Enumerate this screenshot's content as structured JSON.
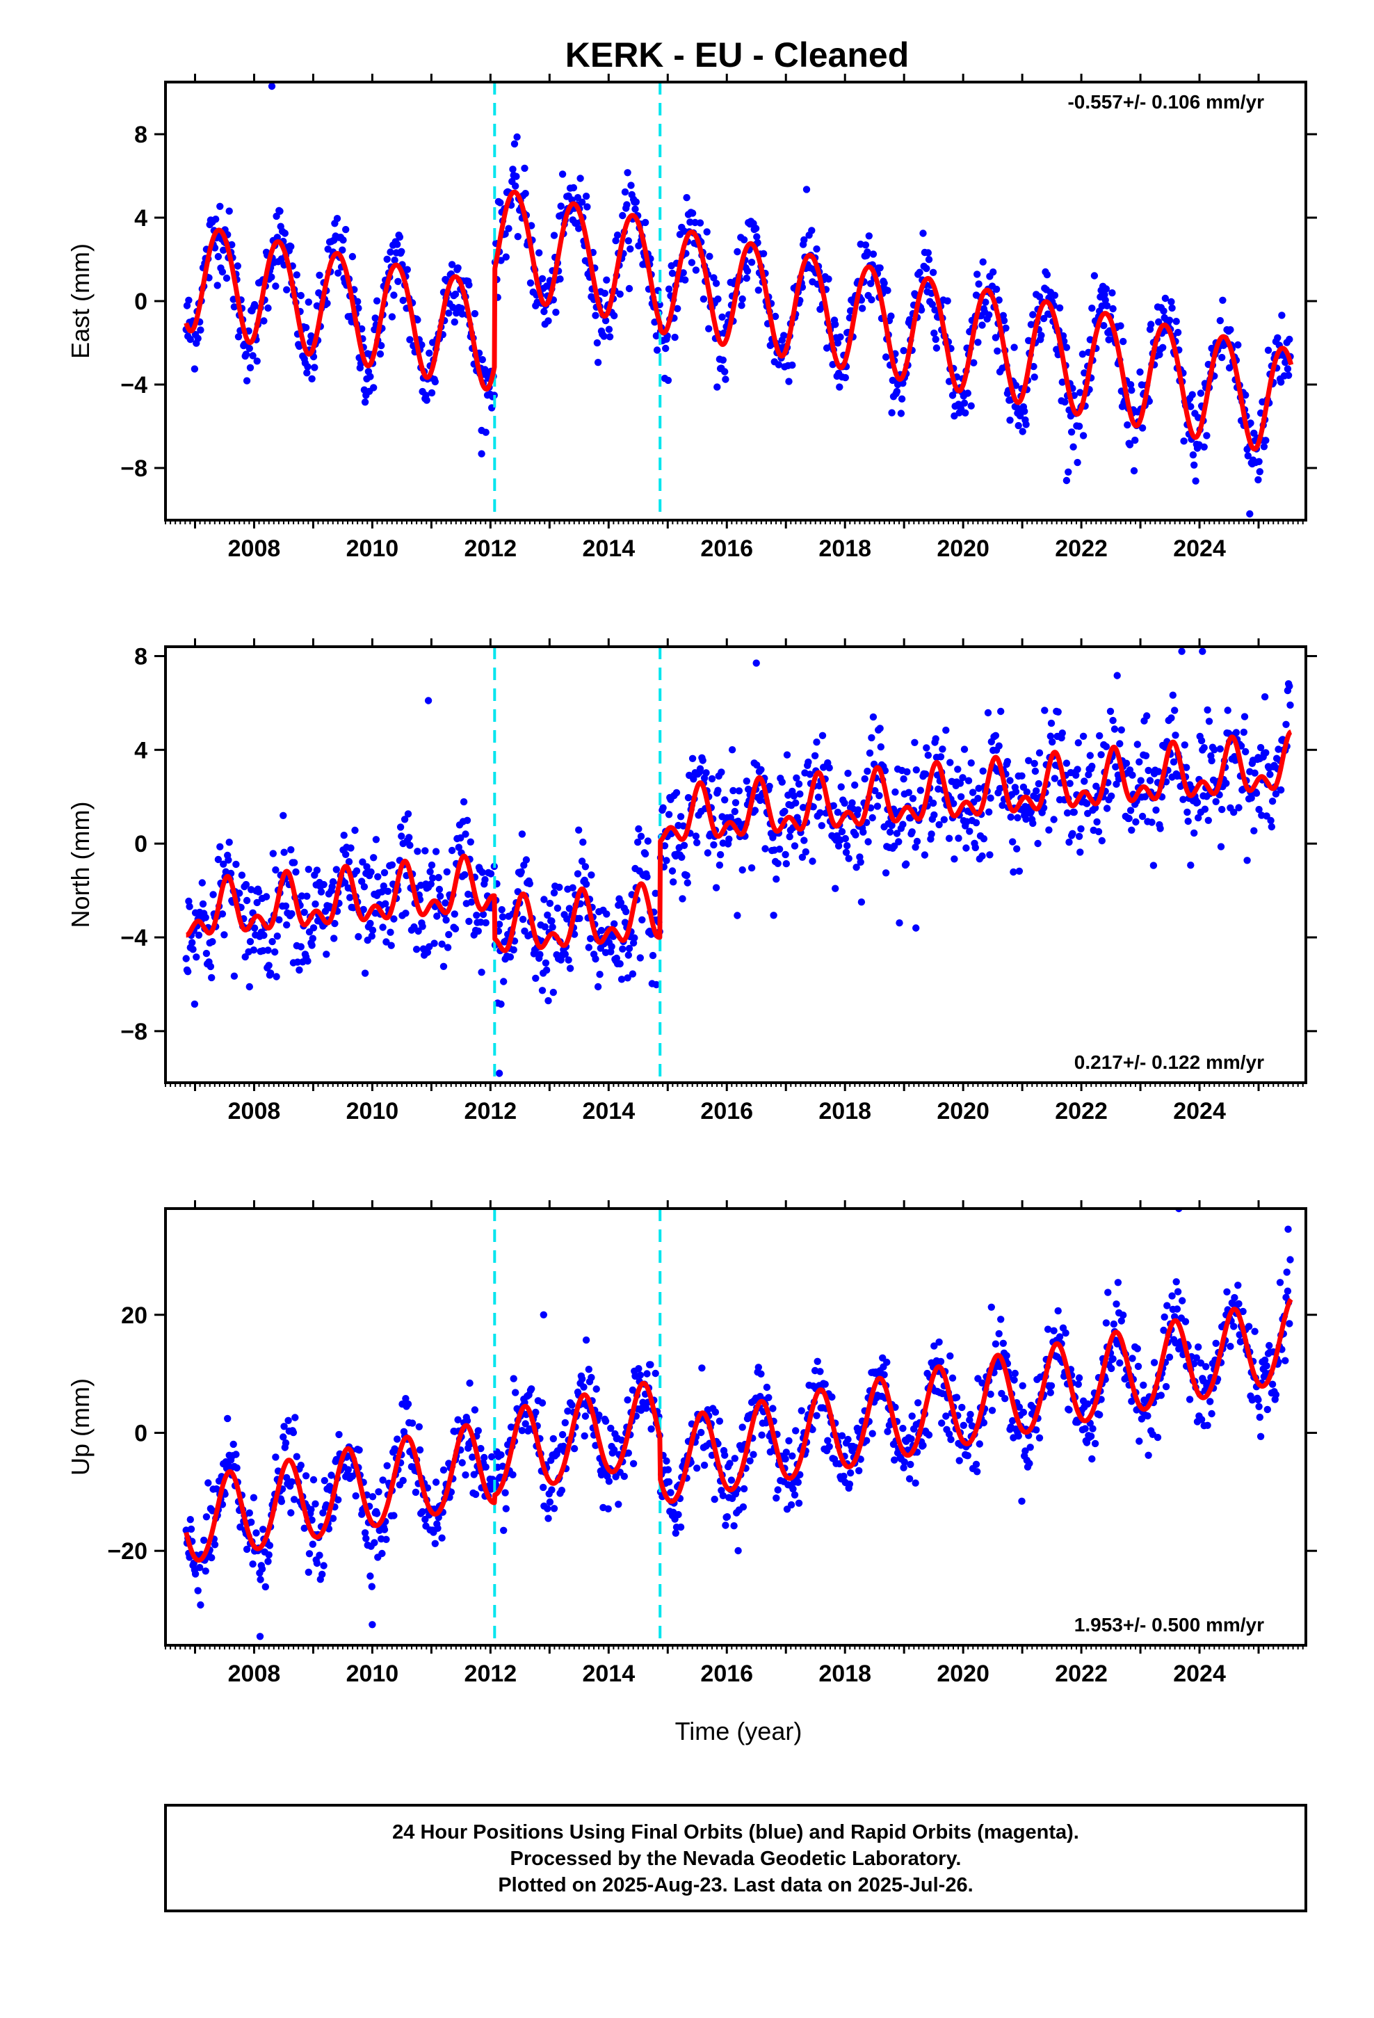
{
  "title": "KERK  - EU - Cleaned",
  "colors": {
    "points": "#0000ff",
    "model_fit": "#ff0000",
    "offsets": "#00e5ee",
    "frame": "#000000"
  },
  "chart_data": [
    {
      "type": "scatter",
      "panel": "east",
      "ylabel": "East (mm)",
      "xlabel": "",
      "xlim": [
        2006.5,
        2025.8
      ],
      "ylim": [
        -10.5,
        10.5
      ],
      "yticks": [
        8,
        4,
        0,
        -4,
        -8
      ],
      "ytick_labels": [
        "8",
        "4",
        "0",
        "−4",
        "−8"
      ],
      "xticks": [
        2008,
        2010,
        2012,
        2014,
        2016,
        2018,
        2020,
        2022,
        2024
      ],
      "xtick_labels": [
        "2008",
        "2010",
        "2012",
        "2014",
        "2016",
        "2018",
        "2020",
        "2022",
        "2024"
      ],
      "rate": "-0.557+/- 0.106 mm/yr",
      "rate_position": "top-right",
      "offsets_x": [
        2012.07,
        2014.87
      ],
      "series": [
        {
          "kind": "model",
          "x_start": 2006.85,
          "x_end": 2025.55,
          "segments": [
            {
              "from": 2006.85,
              "to": 2012.07,
              "level_start": 1.3,
              "trend": -0.557
            },
            {
              "from": 2012.07,
              "to": 2014.87,
              "level_start": 3.0,
              "trend": -0.557
            },
            {
              "from": 2014.87,
              "to": 2025.55,
              "level_start": 1.2,
              "trend": -0.557
            }
          ],
          "annual_amplitude": 2.55,
          "annual_phase_peak": 0.42,
          "semiannual_amplitude": 0.15,
          "semiannual_phase_peak": 0.2
        },
        {
          "kind": "daily_positions",
          "x_start": 2006.85,
          "x_end": 2025.55,
          "scatter_sd": 1.0,
          "outliers": [
            {
              "x": 2008.3,
              "y": 10.3
            },
            {
              "x": 2011.85,
              "y": -6.2
            },
            {
              "x": 2024.85,
              "y": -10.2
            },
            {
              "x": 2021.75,
              "y": -8.6
            }
          ]
        }
      ]
    },
    {
      "type": "scatter",
      "panel": "north",
      "ylabel": "North (mm)",
      "xlabel": "",
      "xlim": [
        2006.5,
        2025.8
      ],
      "ylim": [
        -10.2,
        8.4
      ],
      "yticks": [
        8,
        4,
        0,
        -4,
        -8
      ],
      "ytick_labels": [
        "8",
        "4",
        "0",
        "−4",
        "−8"
      ],
      "xticks": [
        2008,
        2010,
        2012,
        2014,
        2016,
        2018,
        2020,
        2022,
        2024
      ],
      "xtick_labels": [
        "2008",
        "2010",
        "2012",
        "2014",
        "2016",
        "2018",
        "2020",
        "2022",
        "2024"
      ],
      "rate": "0.217+/- 0.122 mm/yr",
      "rate_position": "bottom-right",
      "offsets_x": [
        2012.07,
        2014.87
      ],
      "series": [
        {
          "kind": "model",
          "x_start": 2006.85,
          "x_end": 2025.55,
          "segments": [
            {
              "from": 2006.85,
              "to": 2012.07,
              "level_start": -3.1,
              "trend": 0.217
            },
            {
              "from": 2012.07,
              "to": 2014.87,
              "level_start": -3.8,
              "trend": 0.217
            },
            {
              "from": 2014.87,
              "to": 2025.55,
              "level_start": 0.9,
              "trend": 0.217
            }
          ],
          "annual_amplitude": 0.9,
          "annual_phase_peak": 0.55,
          "semiannual_amplitude": 0.65,
          "semiannual_phase_peak": 0.05
        },
        {
          "kind": "daily_positions",
          "x_start": 2006.85,
          "x_end": 2025.55,
          "scatter_sd": 1.2,
          "outliers": [
            {
              "x": 2010.95,
              "y": 6.1
            },
            {
              "x": 2012.15,
              "y": -9.8
            },
            {
              "x": 2016.5,
              "y": 7.7
            },
            {
              "x": 2023.7,
              "y": 8.2
            },
            {
              "x": 2024.05,
              "y": 8.2
            },
            {
              "x": 2019.2,
              "y": -3.6
            }
          ]
        }
      ]
    },
    {
      "type": "scatter",
      "panel": "up",
      "ylabel": "Up (mm)",
      "xlabel": "Time (year)",
      "xlim": [
        2006.5,
        2025.8
      ],
      "ylim": [
        -36,
        38
      ],
      "yticks": [
        20,
        0,
        -20
      ],
      "ytick_labels": [
        "20",
        "0",
        "−20"
      ],
      "xticks": [
        2008,
        2010,
        2012,
        2014,
        2016,
        2018,
        2020,
        2022,
        2024
      ],
      "xtick_labels": [
        "2008",
        "2010",
        "2012",
        "2014",
        "2016",
        "2018",
        "2020",
        "2022",
        "2024"
      ],
      "rate": "1.953+/- 0.500 mm/yr",
      "rate_position": "bottom-right",
      "offsets_x": [
        2012.07,
        2014.87
      ],
      "series": [
        {
          "kind": "model",
          "x_start": 2006.85,
          "x_end": 2025.55,
          "segments": [
            {
              "from": 2006.85,
              "to": 2012.07,
              "level_start": -15.5,
              "trend": 1.953
            },
            {
              "from": 2012.07,
              "to": 2014.87,
              "level_start": -4.0,
              "trend": 1.953
            },
            {
              "from": 2014.87,
              "to": 2025.55,
              "level_start": -5.5,
              "trend": 1.953
            }
          ],
          "annual_amplitude": 7.0,
          "annual_phase_peak": 0.58,
          "semiannual_amplitude": 0.5,
          "semiannual_phase_peak": 0.1
        },
        {
          "kind": "daily_positions",
          "x_start": 2006.85,
          "x_end": 2025.55,
          "scatter_sd": 3.6,
          "outliers": [
            {
              "x": 2008.1,
              "y": -34.5
            },
            {
              "x": 2010.0,
              "y": -32.5
            },
            {
              "x": 2023.65,
              "y": 38.0
            },
            {
              "x": 2025.5,
              "y": 34.5
            },
            {
              "x": 2012.9,
              "y": 20.0
            }
          ]
        }
      ]
    }
  ],
  "footer": {
    "line1": "24 Hour Positions Using Final Orbits (blue) and Rapid Orbits (magenta).",
    "line2": "Processed by the Nevada Geodetic Laboratory.",
    "line3": "Plotted on 2025-Aug-23. Last data on 2025-Jul-26."
  }
}
